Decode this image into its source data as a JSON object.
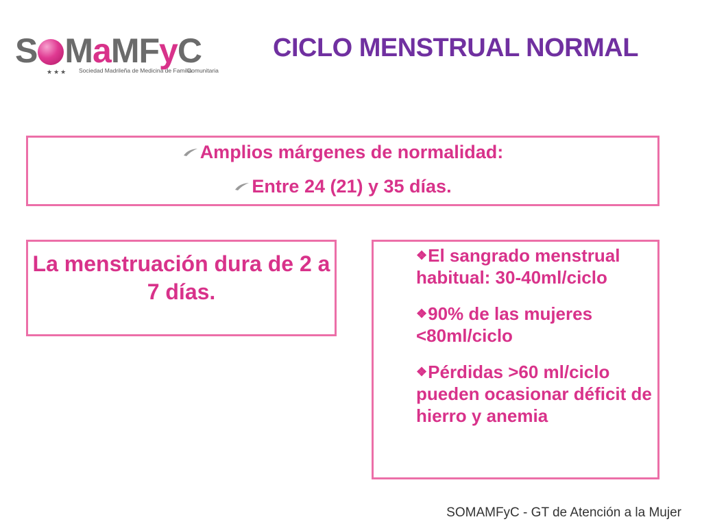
{
  "logo": {
    "wordmark": "SOMaMFyC",
    "tagline_1": "Sociedad Madrileña de Medicina de Familia",
    "tagline_2": "Comunitaria"
  },
  "slide_title": "CICLO MENSTRUAL NORMAL",
  "top_box": {
    "line_1": "Amplios márgenes de normalidad:",
    "line_2": "Entre 24 (21)  y 35 días."
  },
  "left_box": {
    "text": "La menstruación dura de 2 a 7 días."
  },
  "right_box": {
    "bullets": [
      "El sangrado menstrual habitual: 30-40ml/ciclo",
      "90% de las mujeres <80ml/ciclo",
      "Pérdidas >60 ml/ciclo pueden ocasionar déficit de hierro y anemia"
    ]
  },
  "footer": "SOMAMFyC - GT de Atención a la Mujer",
  "colors": {
    "title": "#7030a0",
    "text_pink": "#d8328a",
    "border_pink": "#ec6fa8",
    "logo_gray": "#6b6b6b"
  },
  "icons": {
    "bullet_top": "swoosh-icon",
    "bullet_right": "diamond-cluster-icon"
  }
}
